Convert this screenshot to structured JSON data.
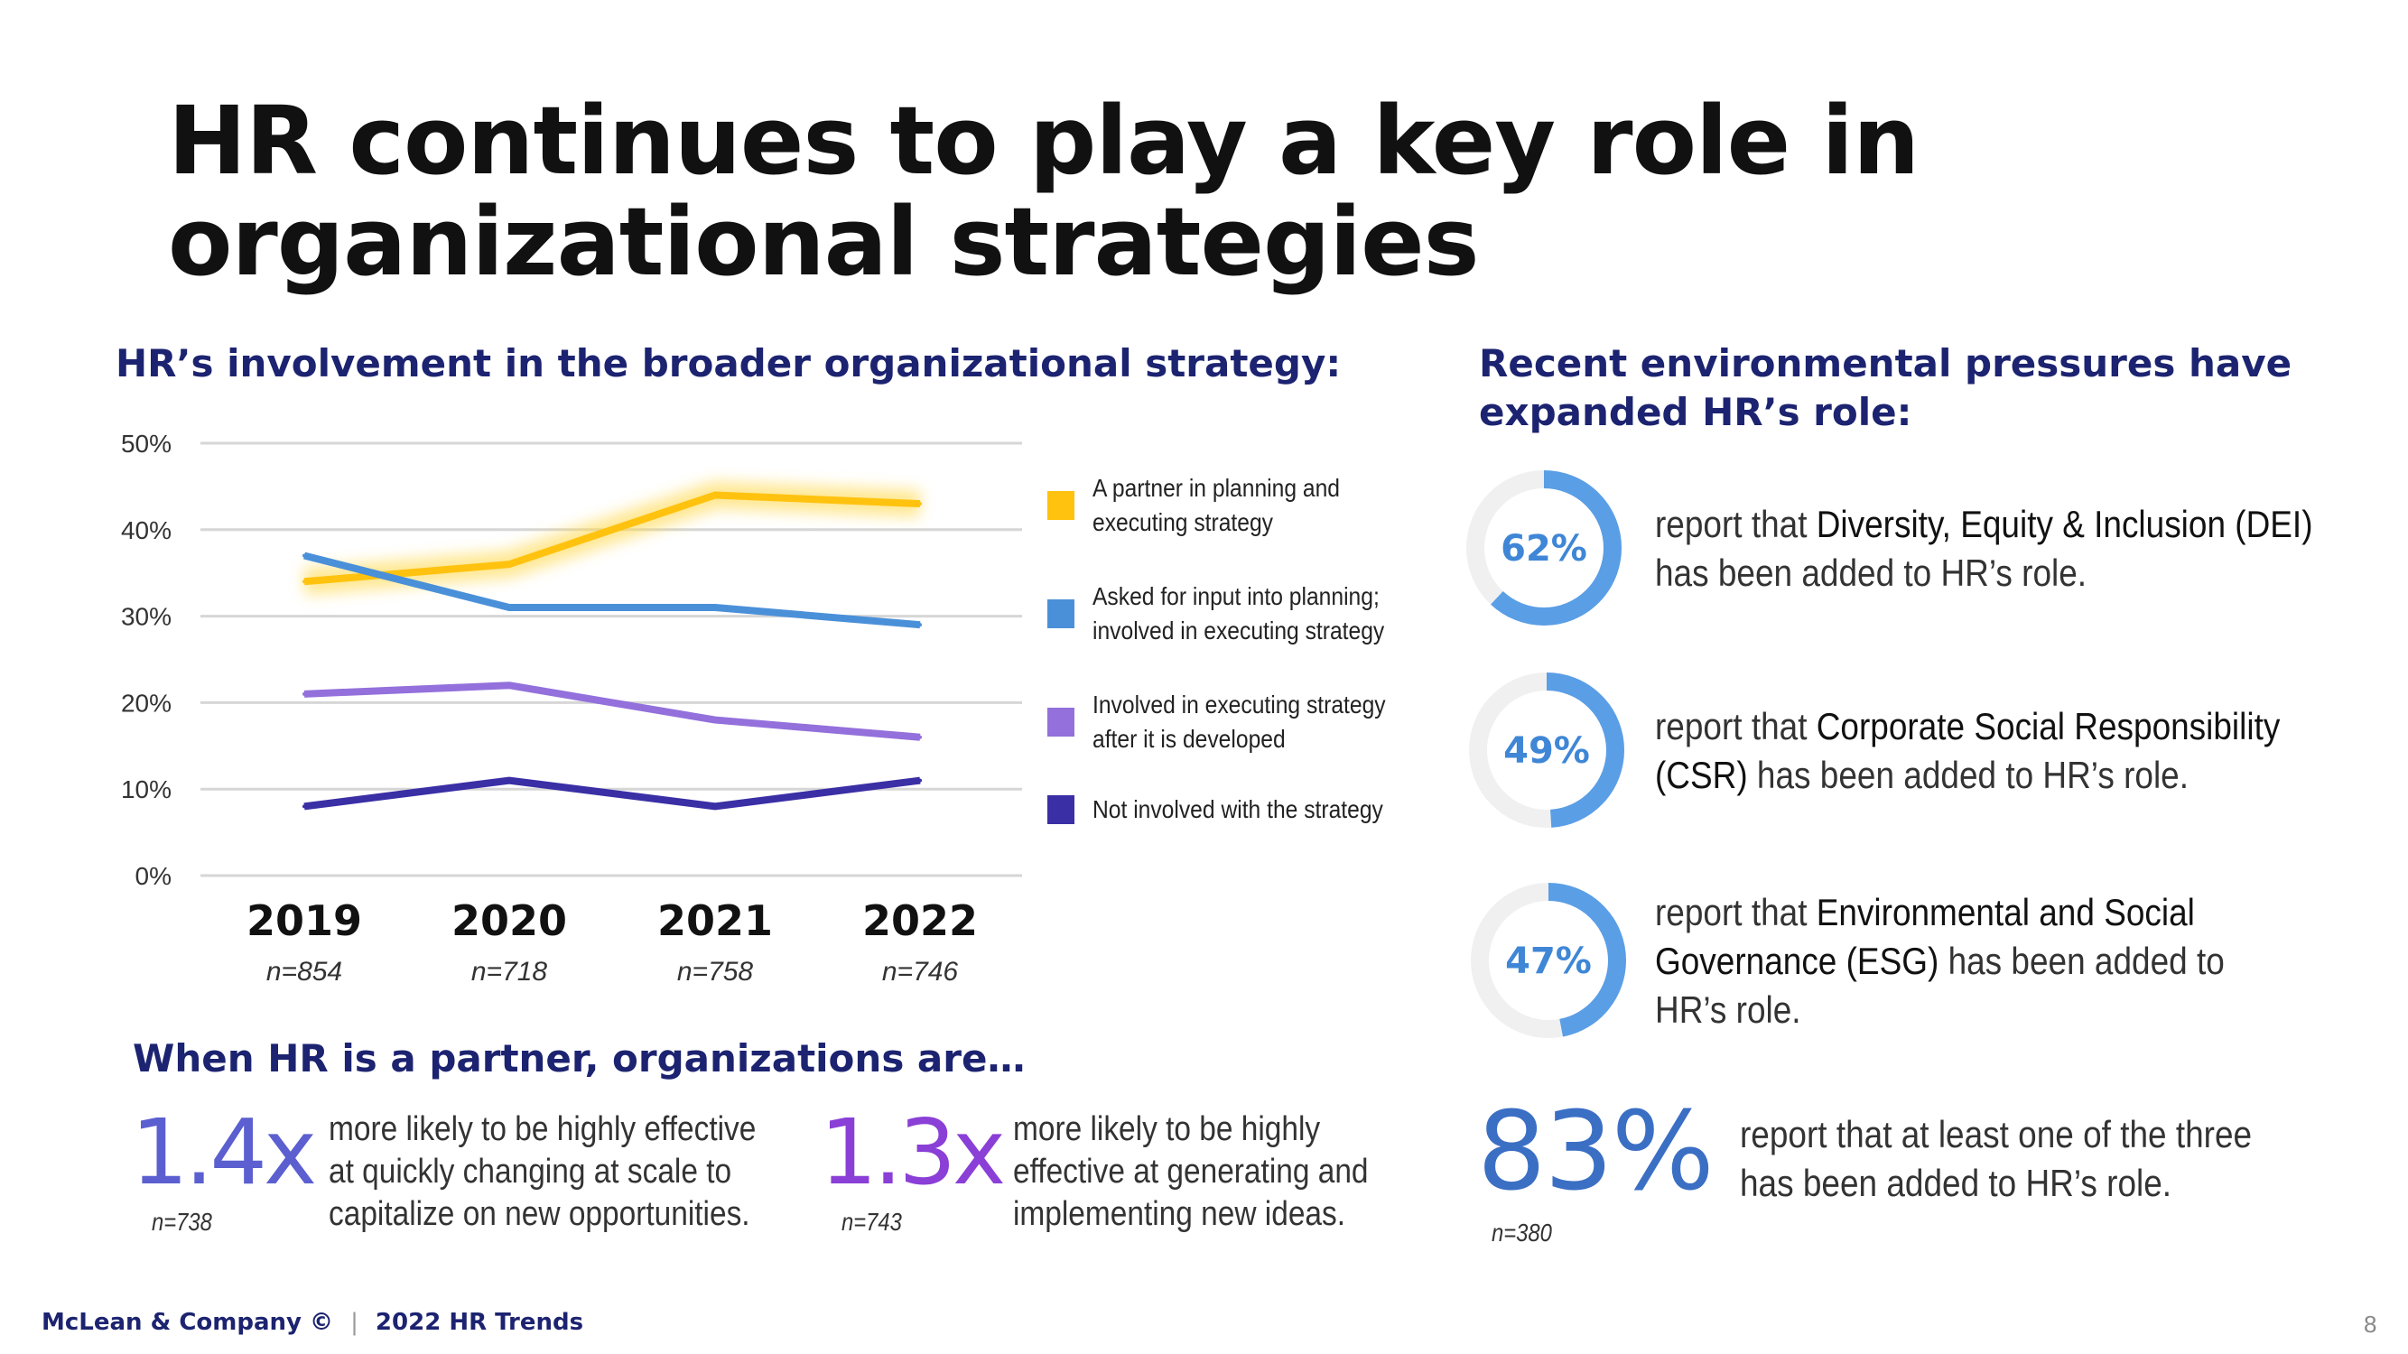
{
  "title": {
    "line1": "HR continues to play a key role in",
    "line2": "organizational strategies"
  },
  "left_heading": "HR’s involvement in the broader organizational strategy:",
  "chart_data": {
    "type": "line",
    "title": "HR’s involvement in the broader organizational strategy:",
    "categories": [
      "2019",
      "2020",
      "2021",
      "2022"
    ],
    "sample_sizes": [
      "n=854",
      "n=718",
      "n=758",
      "n=746"
    ],
    "ylim": [
      0,
      50
    ],
    "yticks": [
      "0%",
      "10%",
      "20%",
      "30%",
      "40%",
      "50%"
    ],
    "ytick_values": [
      0,
      10,
      20,
      30,
      40,
      50
    ],
    "grid": true,
    "legend_position": "right",
    "series": [
      {
        "name": "A partner in planning and executing strategy",
        "lines": [
          "A partner in planning and",
          "executing strategy"
        ],
        "color": "#ffc20e",
        "values": [
          34,
          36,
          44,
          43
        ]
      },
      {
        "name": "Asked for input into planning; involved in executing strategy",
        "lines": [
          "Asked for input into planning;",
          "involved in executing strategy"
        ],
        "color": "#4a90d9",
        "values": [
          37,
          31,
          31,
          29
        ]
      },
      {
        "name": "Involved in executing strategy after it is developed",
        "lines": [
          "Involved in executing strategy",
          "after it is developed"
        ],
        "color": "#9370db",
        "values": [
          21,
          22,
          18,
          16
        ]
      },
      {
        "name": "Not involved with the strategy",
        "lines": [
          "Not involved with the strategy"
        ],
        "color": "#3a2fa5",
        "values": [
          8,
          11,
          8,
          11
        ]
      }
    ]
  },
  "partner": {
    "heading": "When HR is a partner, organizations are…",
    "stats": [
      {
        "value": "1.4x",
        "n": "n=738",
        "lines": [
          "more likely to be highly effective",
          "at quickly changing at scale to",
          "capitalize on new opportunities."
        ],
        "color": "#5b5fcf"
      },
      {
        "value": "1.3x",
        "n": "n=743",
        "lines": [
          "more likely to be highly",
          "effective at generating and",
          "implementing new ideas."
        ],
        "color": "#8a3fd6"
      }
    ]
  },
  "right_heading": {
    "line1": "Recent environmental pressures have",
    "line2": "expanded HR’s role:"
  },
  "donuts": [
    {
      "percent": 62,
      "label": "62%",
      "pre": "report that ",
      "bold": "Diversity, Equity & Inclusion (DEI)",
      "post": "has been added to HR’s role."
    },
    {
      "percent": 49,
      "label": "49%",
      "pre": "report that ",
      "bold": "Corporate Social Responsibility",
      "bold2": "(CSR)",
      "post": " has been added to HR’s role."
    },
    {
      "percent": 47,
      "label": "47%",
      "pre": "report that ",
      "bold": "Environmental and Social",
      "bold2": "Governance (ESG)",
      "post": " has been added to",
      "post2": "HR’s role."
    }
  ],
  "donut_color": "#5a9ee6",
  "summary": {
    "value": "83%",
    "lines": [
      "report that at least one of the three",
      "has been added to HR’s role."
    ],
    "n": "n=380"
  },
  "footer": {
    "brand": "McLean & Company ©",
    "separator": "|",
    "report": "2022 HR Trends",
    "page": "8"
  }
}
